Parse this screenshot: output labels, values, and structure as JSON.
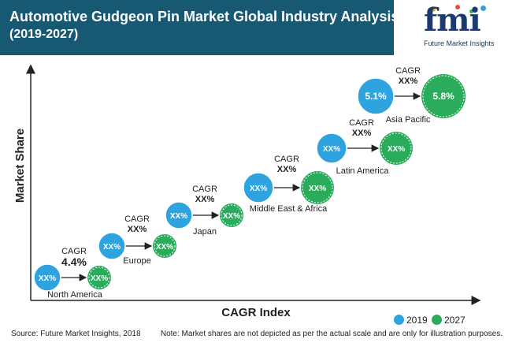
{
  "header": {
    "title": "Automotive Gudgeon Pin Market Global Industry Analysis",
    "subtitle": "(2019-2027)"
  },
  "logo": {
    "text": "fmi",
    "tagline": "Future Market Insights"
  },
  "colors": {
    "header": "#175873",
    "series_2019": "#2ea3e0",
    "series_2027": "#2bab5c"
  },
  "footer": {
    "source": "Source: Future Market Insights, 2018",
    "note": "Note: Market shares are not depicted as per the actual scale and are only for illustration purposes."
  },
  "chart_data": {
    "type": "scatter",
    "xlabel": "CAGR Index",
    "ylabel": "Market Share",
    "legend": {
      "placement": "bottom-right",
      "entries": [
        "2019",
        "2027"
      ]
    },
    "cagr_label": "CAGR",
    "regions": [
      {
        "name": "North America",
        "cagr": "4.4%",
        "v2019": "XX%",
        "v2027": "XX%",
        "size": "small"
      },
      {
        "name": "Europe",
        "cagr": "XX%",
        "v2019": "XX%",
        "v2027": "XX%",
        "size": "small"
      },
      {
        "name": "Japan",
        "cagr": "XX%",
        "v2019": "XX%",
        "v2027": "XX%",
        "size": "small"
      },
      {
        "name": "Middle East & Africa",
        "cagr": "XX%",
        "v2019": "XX%",
        "v2027": "XX%",
        "size": "medium"
      },
      {
        "name": "Latin America",
        "cagr": "XX%",
        "v2019": "XX%",
        "v2027": "XX%",
        "size": "medium"
      },
      {
        "name": "Asia Pacific",
        "cagr": "XX%",
        "v2019": "5.1%",
        "v2027": "5.8%",
        "size": "large"
      }
    ]
  }
}
